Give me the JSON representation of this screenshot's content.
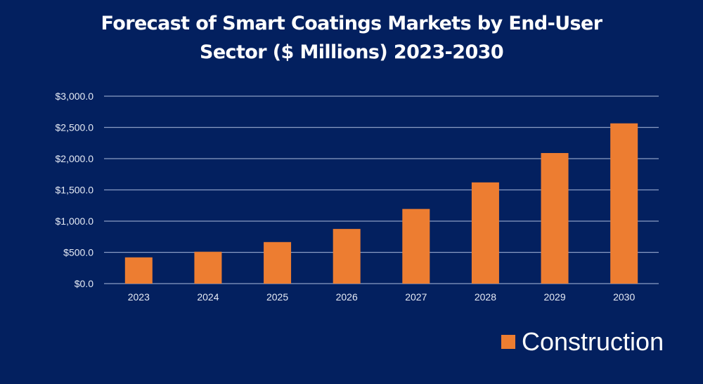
{
  "chart_data": {
    "type": "bar",
    "title": "Forecast of Smart Coatings Markets by End-User Sector ($ Millions) 2023-2030",
    "title_lines": [
      "Forecast of Smart Coatings Markets by End-User",
      "Sector ($ Millions) 2023-2030"
    ],
    "categories": [
      "2023",
      "2024",
      "2025",
      "2026",
      "2027",
      "2028",
      "2029",
      "2030"
    ],
    "series": [
      {
        "name": "Construction",
        "color": "#ed7d31",
        "values": [
          420,
          510,
          665,
          875,
          1195,
          1620,
          2090,
          2565
        ]
      }
    ],
    "xlabel": "",
    "ylabel": "",
    "ylim": [
      0,
      3000
    ],
    "yticks": [
      0,
      500,
      1000,
      1500,
      2000,
      2500,
      3000
    ],
    "ytick_labels": [
      "$0.0",
      "$500.0",
      "$1,000.0",
      "$1,500.0",
      "$2,000.0",
      "$2,500.0",
      "$3,000.0"
    ],
    "grid": true,
    "legend_position": "bottom-right",
    "colors": {
      "background": "#03205f",
      "grid": "#8a9cc4",
      "text": "#ffffff",
      "axis_text": "#e6ebf5"
    }
  }
}
